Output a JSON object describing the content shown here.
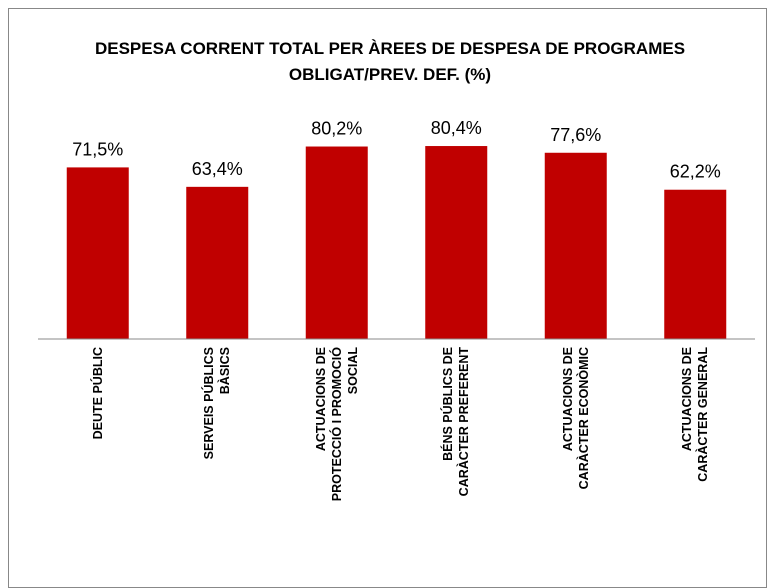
{
  "chart_data": {
    "type": "bar",
    "title": "DESPESA CORRENT TOTAL PER  ÀREES DE DESPESA DE PROGRAMES OBLIGAT/PREV. DEF. (%)",
    "categories": [
      "DEUTE PÚBLIC",
      "SERVEIS PÚBLICS BÀSICS",
      "ACTUACIONS DE PROTECCIÓ I PROMOCIÓ SOCIAL",
      "BÉNS PÚBLICS DE CARÀCTER PREFERENT",
      "ACTUACIONS DE CARÀCTER ECONÒMIC",
      "ACTUACIONS DE CARÀCTER GENERAL"
    ],
    "values": [
      71.5,
      63.4,
      80.2,
      80.4,
      77.6,
      62.2
    ],
    "value_labels": [
      "71,5%",
      "63,4%",
      "80,2%",
      "80,4%",
      "77,6%",
      "62,2%"
    ],
    "color": "#c00000",
    "ylim": [
      0,
      90
    ]
  }
}
